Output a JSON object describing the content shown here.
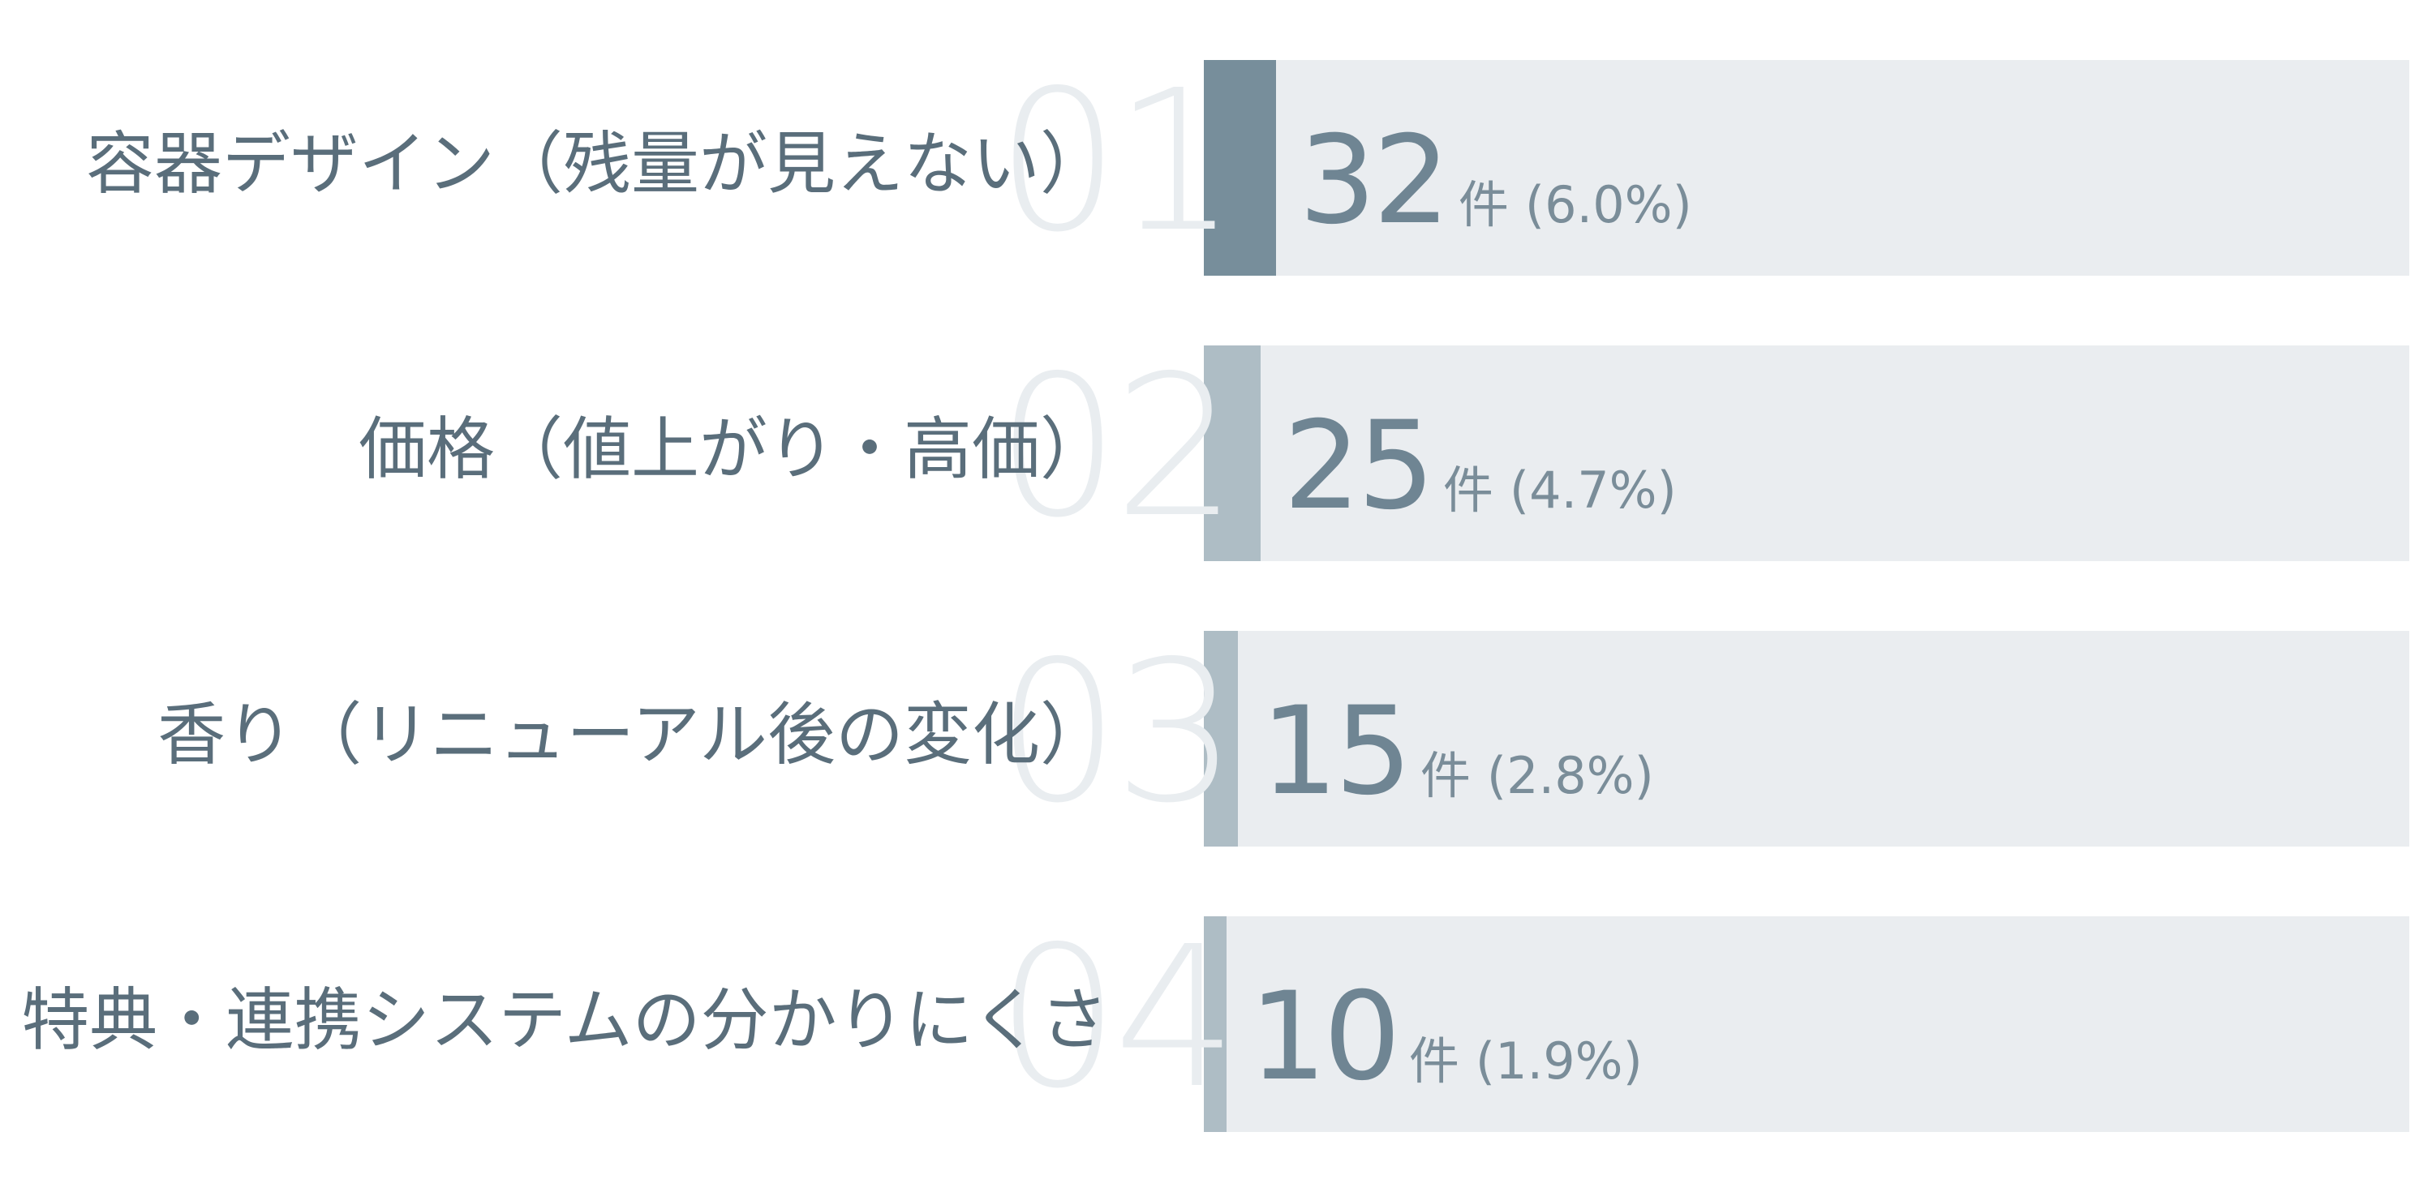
{
  "colors": {
    "label_text": "#5a6e7b",
    "bar_track": "#eaedf0",
    "bar_fill_top": "#778e9b",
    "bar_fill_other": "#aebdc5",
    "rank_number": "#e9edf0",
    "value_text": "#6f8593"
  },
  "chart_data": {
    "type": "bar",
    "orientation": "horizontal",
    "categories": [
      "容器デザイン（残量が見えない）",
      "価格（値上がり・高価）",
      "香り（リニューアル後の変化）",
      "特典・連携システムの分かりにくさ"
    ],
    "ranks": [
      "01",
      "02",
      "03",
      "04"
    ],
    "values": [
      32,
      25,
      15,
      10
    ],
    "percent_labels": [
      "(6.0%)",
      "(4.7%)",
      "(2.8%)",
      "(1.9%)"
    ],
    "unit": "件",
    "xlim": [
      0,
      533
    ],
    "grid": false,
    "legend": "none"
  }
}
